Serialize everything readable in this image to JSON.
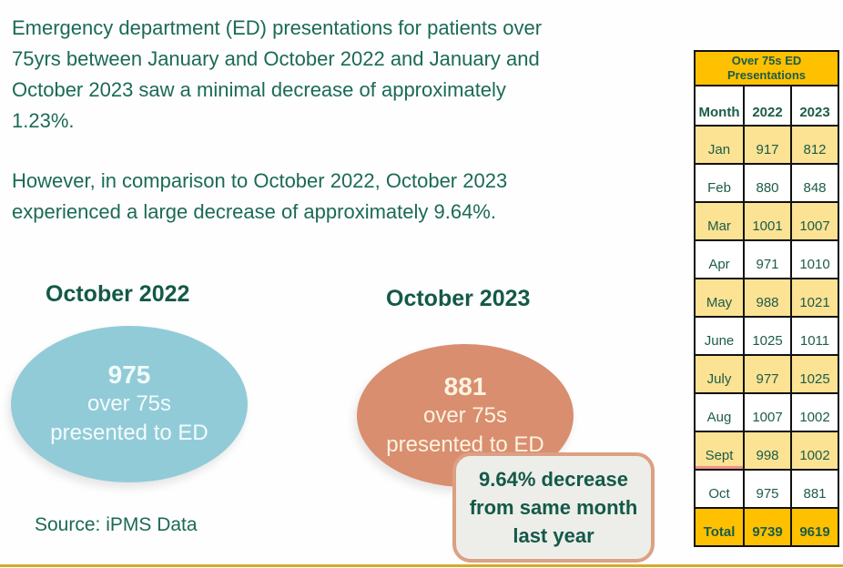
{
  "intro": {
    "paragraph1": "Emergency department (ED) presentations for patients over\n75yrs between January and October 2022 and January and\nOctober 2023 saw a minimal decrease of approximately\n1.23%.",
    "paragraph2": "However, in comparison to October 2022, October 2023\nexperienced a large decrease of approximately 9.64%."
  },
  "comparison": {
    "oct2022": {
      "title": "October 2022",
      "value": "975",
      "label": "over 75s\npresented to ED"
    },
    "oct2023": {
      "title": "October 2023",
      "value": "881",
      "label": "over 75s\npresented to ED"
    },
    "callout": {
      "text": "9.64% decrease\nfrom same month\nlast year"
    }
  },
  "source_note": "Source: iPMS Data",
  "chart_data": {
    "type": "table",
    "title": "Over 75s ED\nPresentations",
    "columns": [
      "Month",
      "2022",
      "2023"
    ],
    "rows": [
      {
        "month": "Jan",
        "y2022": "917",
        "y2023": "812",
        "shaded": true
      },
      {
        "month": "Feb",
        "y2022": "880",
        "y2023": "848",
        "shaded": false
      },
      {
        "month": "Mar",
        "y2022": "1001",
        "y2023": "1007",
        "shaded": true
      },
      {
        "month": "Apr",
        "y2022": "971",
        "y2023": "1010",
        "shaded": false
      },
      {
        "month": "May",
        "y2022": "988",
        "y2023": "1021",
        "shaded": true
      },
      {
        "month": "June",
        "y2022": "1025",
        "y2023": "1011",
        "shaded": false
      },
      {
        "month": "July",
        "y2022": "977",
        "y2023": "1025",
        "shaded": true
      },
      {
        "month": "Aug",
        "y2022": "1007",
        "y2023": "1002",
        "shaded": false
      },
      {
        "month": "Sept",
        "y2022": "998",
        "y2023": "1002",
        "shaded": true,
        "underline": true
      },
      {
        "month": "Oct",
        "y2022": "975",
        "y2023": "881",
        "shaded": false
      },
      {
        "month": "Total",
        "y2022": "9739",
        "y2023": "9619",
        "total": true
      }
    ]
  },
  "colors": {
    "accent_gold": "#FFC000",
    "row_tan": "#FCE293",
    "table_green": "#1C5C4A",
    "text_green": "#1B6A56",
    "heading_green": "#145948",
    "ellipse_blue": "#92CBD8",
    "ellipse_salmon": "#D98E6F",
    "callout_bg": "#EDEEEA",
    "callout_border": "#DCA084",
    "bottom_line": "#D2AC28",
    "spell_red": "#F0938B"
  }
}
